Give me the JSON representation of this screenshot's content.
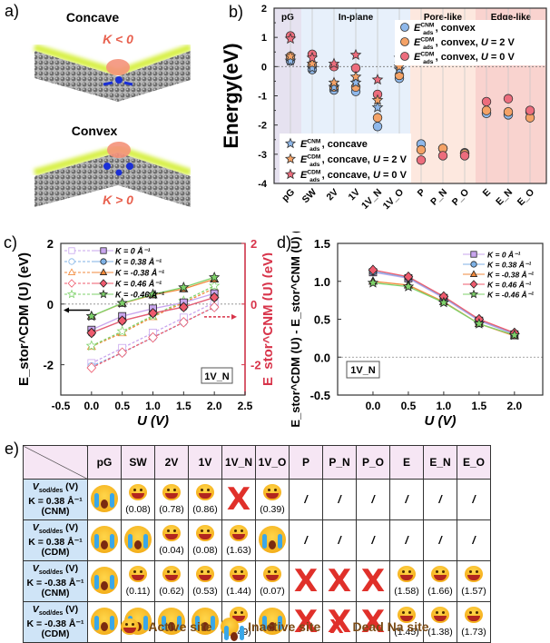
{
  "panel_a": {
    "label": "a)",
    "concave": {
      "title": "Concave",
      "curvature": "K < 0"
    },
    "convex": {
      "title": "Convex",
      "curvature": "K > 0"
    }
  },
  "panel_labels": {
    "b": "b)",
    "c": "c)",
    "d": "d)",
    "e": "e)"
  },
  "colors": {
    "cnm": "#8fb8ea",
    "cdm_2v": "#f4a266",
    "cdm_0v": "#ec6d7d",
    "pG_bg": "#e6e2f0",
    "inplane_bg": "#e7f0fb",
    "pore_bg": "#fde8df",
    "edge_bg": "#f9d3cf",
    "k0": "#c9a6ee",
    "k038": "#7fb2e6",
    "km038": "#f28a3c",
    "k046": "#ef5b6e",
    "km046": "#7ed26a",
    "right_axis": "#d8344a",
    "table_header": "#f6e6f4",
    "table_rowhead": "#cfe4f7",
    "dead": "#e0302a",
    "legend_text": "#7a4a14"
  },
  "chart_data": [
    {
      "id": "b",
      "type": "scatter",
      "title": "",
      "ylabel": "Energy(eV)",
      "xlabel": "",
      "ylim": [
        -4,
        2
      ],
      "yticks": [
        2,
        1,
        0,
        -1,
        -2,
        -3,
        -4
      ],
      "categories": [
        "pG",
        "SW",
        "2V",
        "1V",
        "1V_N",
        "1V_O",
        "P",
        "P_N",
        "P_O",
        "E",
        "E_N",
        "E_O"
      ],
      "regions": [
        {
          "label": "pG",
          "from": "pG",
          "to": "pG"
        },
        {
          "label": "In-plane",
          "from": "SW",
          "to": "1V_O"
        },
        {
          "label": "Pore-like",
          "from": "P",
          "to": "P_O"
        },
        {
          "label": "Edge-like",
          "from": "E",
          "to": "E_O"
        }
      ],
      "series": [
        {
          "name": "E_ads^CNM, convex",
          "marker": "circle",
          "color_key": "cnm",
          "values": [
            0.2,
            -0.1,
            -0.8,
            -0.85,
            -2.05,
            -0.4,
            -2.65,
            -2.8,
            -2.95,
            -1.6,
            -1.65,
            -1.55
          ]
        },
        {
          "name": "E_ads^CDM, convex, U = 2 V",
          "marker": "circle",
          "color_key": "cdm_2v",
          "values": [
            0.35,
            0.05,
            -0.7,
            -0.7,
            -1.75,
            -0.3,
            -2.85,
            -2.8,
            -2.98,
            -1.5,
            -1.55,
            -1.75
          ]
        },
        {
          "name": "E_ads^CDM, convex, U = 0 V",
          "marker": "circle",
          "color_key": "cdm_0v",
          "values": [
            1.05,
            0.42,
            0.0,
            -0.05,
            -0.95,
            0.15,
            -3.2,
            -3.05,
            -3.05,
            -1.2,
            -1.1,
            -1.5
          ]
        },
        {
          "name": "E_ads^CNM, concave",
          "marker": "star",
          "color_key": "cnm",
          "values": [
            0.2,
            -0.05,
            -0.7,
            -0.55,
            -1.4,
            -0.1,
            null,
            null,
            null,
            null,
            null,
            null
          ]
        },
        {
          "name": "E_ads^CDM, concave, U = 2 V",
          "marker": "star",
          "color_key": "cdm_2v",
          "values": [
            0.35,
            0.1,
            -0.55,
            -0.35,
            -1.15,
            0.0,
            null,
            null,
            null,
            null,
            null,
            null
          ]
        },
        {
          "name": "E_ads^CDM, concave, U = 0 V",
          "marker": "star",
          "color_key": "cdm_0v",
          "values": [
            0.95,
            0.3,
            0.1,
            0.4,
            -0.45,
            0.3,
            null,
            null,
            null,
            null,
            null,
            null
          ]
        }
      ],
      "legend_convex": {
        "items": [
          {
            "sym": "E",
            "sup": "CNM",
            "sub": "ads",
            "text": ", convex"
          },
          {
            "sym": "E",
            "sup": "CDM",
            "sub": "ads",
            "text": ", convex, ",
            "u": "U",
            "utext": " = 2 V"
          },
          {
            "sym": "E",
            "sup": "CDM",
            "sub": "ads",
            "text": ", convex, ",
            "u": "U",
            "utext": " = 0 V"
          }
        ],
        "placement": "top-right"
      },
      "legend_concave": {
        "items": [
          {
            "sym": "E",
            "sup": "CNM",
            "sub": "ads",
            "text": ", concave"
          },
          {
            "sym": "E",
            "sup": "CDM",
            "sub": "ads",
            "text": ", concave, ",
            "u": "U",
            "utext": " = 2 V"
          },
          {
            "sym": "E",
            "sup": "CDM",
            "sub": "ads",
            "text": ", concave, ",
            "u": "U",
            "utext": " = 0 V"
          }
        ],
        "placement": "bottom-left"
      }
    },
    {
      "id": "c",
      "type": "line",
      "xlabel": "U (V)",
      "ylabel_left": "E_stor^CDM (U) (eV)",
      "ylabel_right": "E_stor^CNM (U) (eV)",
      "xlim": [
        -0.5,
        2.5
      ],
      "ylim": [
        -3,
        2
      ],
      "xticks": [
        "-0.5",
        "0.0",
        "0.5",
        "1.0",
        "1.5",
        "2.0",
        "2.5"
      ],
      "yticks_left": [
        "2",
        "0",
        "-2"
      ],
      "yticks_right": [
        "2",
        "0",
        "-2"
      ],
      "annotation": "1V_N",
      "x": [
        0.0,
        0.5,
        1.0,
        1.5,
        2.0
      ],
      "series": [
        {
          "name": "K = 0 Å⁻¹",
          "marker": "square",
          "color_key": "k0",
          "cdm": [
            -0.85,
            -0.4,
            -0.15,
            0.05,
            0.35
          ],
          "cnm": [
            -1.95,
            -1.45,
            -0.95,
            -0.45,
            0.05
          ]
        },
        {
          "name": "K = 0.38 Å⁻¹",
          "marker": "circle",
          "color_key": "k038",
          "cdm": [
            -0.95,
            -0.55,
            -0.3,
            -0.1,
            0.22
          ],
          "cnm": [
            -2.05,
            -1.6,
            -1.1,
            -0.6,
            -0.1
          ]
        },
        {
          "name": "K = -0.38 Å⁻¹",
          "marker": "triangle",
          "color_key": "km038",
          "cdm": [
            -0.4,
            0.02,
            0.3,
            0.5,
            0.82
          ],
          "cnm": [
            -1.4,
            -0.95,
            -0.42,
            0.05,
            0.52
          ]
        },
        {
          "name": "K = 0.46 Å⁻¹",
          "marker": "diamond",
          "color_key": "k046",
          "cdm": [
            -0.95,
            -0.55,
            -0.3,
            -0.1,
            0.22
          ],
          "cnm": [
            -2.1,
            -1.6,
            -1.1,
            -0.6,
            -0.1
          ]
        },
        {
          "name": "K = -0.46 Å⁻¹",
          "marker": "star",
          "color_key": "km046",
          "cdm": [
            -0.4,
            0.03,
            0.32,
            0.55,
            0.88
          ],
          "cnm": [
            -1.38,
            -0.9,
            -0.38,
            0.1,
            0.6
          ]
        }
      ],
      "legend_placement": "top-left"
    },
    {
      "id": "d",
      "type": "line",
      "xlabel": "U (V)",
      "ylabel": "E_stor^CDM (U) - E_stor^CNM (U) (eV)",
      "xlim": [
        -0.5,
        2.4
      ],
      "ylim": [
        -0.5,
        1.5
      ],
      "xticks": [
        "0.0",
        "0.5",
        "1.0",
        "1.5",
        "2.0"
      ],
      "yticks": [
        "1.5",
        "1.0",
        "0.5",
        "0.0",
        "-0.5"
      ],
      "annotation": "1V_N",
      "x": [
        0.0,
        0.5,
        1.0,
        1.5,
        2.0
      ],
      "series": [
        {
          "name": "K = 0 Å⁻¹",
          "marker": "square",
          "color_key": "k0",
          "values": [
            1.12,
            1.04,
            0.78,
            0.48,
            0.3
          ]
        },
        {
          "name": "K = 0.38 Å⁻¹",
          "marker": "circle",
          "color_key": "k038",
          "values": [
            1.13,
            1.05,
            0.79,
            0.49,
            0.31
          ]
        },
        {
          "name": "K = -0.38 Å⁻¹",
          "marker": "triangle",
          "color_key": "km038",
          "values": [
            1.0,
            0.95,
            0.73,
            0.44,
            0.28
          ]
        },
        {
          "name": "K = 0.46 Å⁻¹",
          "marker": "diamond",
          "color_key": "k046",
          "values": [
            1.15,
            1.06,
            0.8,
            0.5,
            0.32
          ]
        },
        {
          "name": "K = -0.46 Å⁻¹",
          "marker": "star",
          "color_key": "km046",
          "values": [
            0.98,
            0.93,
            0.72,
            0.44,
            0.29
          ]
        }
      ],
      "legend_placement": "top-right"
    },
    {
      "id": "e",
      "type": "table",
      "columns": [
        "pG",
        "SW",
        "2V",
        "1V",
        "1V_N",
        "1V_O",
        "P",
        "P_N",
        "P_O",
        "E",
        "E_N",
        "E_O"
      ],
      "rows": [
        {
          "head": {
            "v": "V",
            "sub": "sod/des",
            "unit": "(V)",
            "k": "K = 0.38 Å⁻¹",
            "model": "(CNM)"
          },
          "cells": [
            {
              "t": "inactive"
            },
            {
              "t": "active",
              "v": "(0.08)"
            },
            {
              "t": "active",
              "v": "(0.78)"
            },
            {
              "t": "active",
              "v": "(0.86)"
            },
            {
              "t": "dead"
            },
            {
              "t": "active",
              "v": "(0.39)"
            },
            {
              "t": "na",
              "v": "/"
            },
            {
              "t": "na",
              "v": "/"
            },
            {
              "t": "na",
              "v": "/"
            },
            {
              "t": "na",
              "v": "/"
            },
            {
              "t": "na",
              "v": "/"
            },
            {
              "t": "na",
              "v": "/"
            }
          ]
        },
        {
          "head": {
            "v": "V",
            "sub": "sod/des",
            "unit": "(V)",
            "k": "K = 0.38 Å⁻¹",
            "model": "(CDM)"
          },
          "cells": [
            {
              "t": "inactive"
            },
            {
              "t": "inactive"
            },
            {
              "t": "active",
              "v": "(0.04)"
            },
            {
              "t": "active",
              "v": "(0.08)"
            },
            {
              "t": "active",
              "v": "(1.63)"
            },
            {
              "t": "inactive"
            },
            {
              "t": "na",
              "v": "/"
            },
            {
              "t": "na",
              "v": "/"
            },
            {
              "t": "na",
              "v": "/"
            },
            {
              "t": "na",
              "v": "/"
            },
            {
              "t": "na",
              "v": "/"
            },
            {
              "t": "na",
              "v": "/"
            }
          ]
        },
        {
          "head": {
            "v": "V",
            "sub": "sod/des",
            "unit": "(V)",
            "k": "K = -0.38 Å⁻¹",
            "model": "(CNM)"
          },
          "cells": [
            {
              "t": "inactive"
            },
            {
              "t": "active",
              "v": "(0.11)"
            },
            {
              "t": "active",
              "v": "(0.62)"
            },
            {
              "t": "active",
              "v": "(0.53)"
            },
            {
              "t": "active",
              "v": "(1.44)"
            },
            {
              "t": "active",
              "v": "(0.07)"
            },
            {
              "t": "dead"
            },
            {
              "t": "dead"
            },
            {
              "t": "dead"
            },
            {
              "t": "active",
              "v": "(1.58)"
            },
            {
              "t": "active",
              "v": "(1.66)"
            },
            {
              "t": "active",
              "v": "(1.57)"
            }
          ]
        },
        {
          "head": {
            "v": "V",
            "sub": "sod/des",
            "unit": "(V)",
            "k": "K = -0.38 Å⁻¹",
            "model": "(CDM)"
          },
          "cells": [
            {
              "t": "inactive"
            },
            {
              "t": "inactive"
            },
            {
              "t": "inactive"
            },
            {
              "t": "inactive"
            },
            {
              "t": "active",
              "v": "(0.49)"
            },
            {
              "t": "inactive"
            },
            {
              "t": "dead"
            },
            {
              "t": "dead"
            },
            {
              "t": "dead"
            },
            {
              "t": "active",
              "v": "(1.45)"
            },
            {
              "t": "active",
              "v": "(1.38)"
            },
            {
              "t": "active",
              "v": "(1.73)"
            }
          ]
        }
      ],
      "legend": {
        "active": "Active site",
        "inactive": "Inactive site",
        "dead": "Dead Na site"
      },
      "dead_symbol": "X"
    }
  ]
}
